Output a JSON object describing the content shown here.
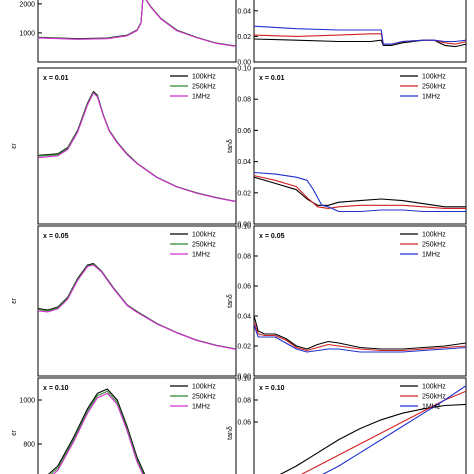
{
  "chart_data": [
    {
      "type": "line",
      "id": "eps-top",
      "ylabel": "",
      "ylim": [
        0,
        2200
      ],
      "yticks": [
        1000,
        2000
      ],
      "xlim": [
        0,
        1
      ],
      "annotation": "",
      "legend": [],
      "series": [
        {
          "name": "",
          "color": "#000000",
          "x": [
            0,
            0.2,
            0.35,
            0.45,
            0.5,
            0.52,
            0.53,
            0.54,
            0.57,
            0.62,
            0.7,
            0.8,
            0.9,
            1
          ],
          "y": [
            850,
            800,
            820,
            920,
            1100,
            1350,
            2200,
            2200,
            1900,
            1500,
            1100,
            850,
            650,
            550
          ]
        },
        {
          "name": "",
          "color": "#2e8b2e",
          "x": [
            0,
            0.2,
            0.35,
            0.45,
            0.5,
            0.52,
            0.53,
            0.54,
            0.57,
            0.62,
            0.7,
            0.8,
            0.9,
            1
          ],
          "y": [
            840,
            790,
            810,
            910,
            1090,
            1340,
            2200,
            2200,
            1890,
            1490,
            1090,
            845,
            645,
            545
          ]
        },
        {
          "name": "",
          "color": "#d22fd2",
          "x": [
            0,
            0.2,
            0.35,
            0.45,
            0.5,
            0.52,
            0.53,
            0.54,
            0.57,
            0.62,
            0.7,
            0.8,
            0.9,
            1
          ],
          "y": [
            830,
            780,
            800,
            900,
            1080,
            1330,
            2200,
            2200,
            1880,
            1480,
            1080,
            840,
            640,
            540
          ]
        }
      ]
    },
    {
      "type": "line",
      "id": "tan-top",
      "ylabel": "",
      "ylim": [
        0,
        0.05
      ],
      "yticks": [
        0.0,
        0.02,
        0.04
      ],
      "xlim": [
        0,
        1
      ],
      "annotation": "",
      "legend": [],
      "series": [
        {
          "name": "",
          "color": "#000000",
          "x": [
            0,
            0.2,
            0.4,
            0.55,
            0.6,
            0.61,
            0.65,
            0.7,
            0.8,
            0.85,
            0.9,
            0.95,
            1
          ],
          "y": [
            0.018,
            0.017,
            0.016,
            0.016,
            0.017,
            0.013,
            0.013,
            0.015,
            0.017,
            0.017,
            0.013,
            0.012,
            0.014
          ]
        },
        {
          "name": "",
          "color": "#d32020",
          "x": [
            0,
            0.2,
            0.4,
            0.55,
            0.6,
            0.61,
            0.65,
            0.7,
            0.8,
            0.85,
            0.9,
            0.95,
            1
          ],
          "y": [
            0.021,
            0.02,
            0.021,
            0.022,
            0.022,
            0.014,
            0.014,
            0.016,
            0.017,
            0.017,
            0.015,
            0.014,
            0.016
          ]
        },
        {
          "name": "",
          "color": "#2030d0",
          "x": [
            0,
            0.2,
            0.4,
            0.55,
            0.6,
            0.61,
            0.65,
            0.7,
            0.8,
            0.85,
            0.9,
            0.95,
            1
          ],
          "y": [
            0.028,
            0.026,
            0.025,
            0.025,
            0.025,
            0.014,
            0.014,
            0.016,
            0.017,
            0.017,
            0.016,
            0.016,
            0.017
          ]
        }
      ]
    },
    {
      "type": "line",
      "id": "eps-001",
      "ylabel": "εr",
      "ylim": [
        0,
        2000
      ],
      "yticks": [],
      "xlim": [
        0,
        1
      ],
      "annotation": "x = 0.01",
      "legend": [
        "100kHz",
        "250kHz",
        "1MHz"
      ],
      "series": [
        {
          "name": "100kHz",
          "color": "#000000",
          "x": [
            0,
            0.1,
            0.15,
            0.2,
            0.25,
            0.28,
            0.3,
            0.33,
            0.36,
            0.4,
            0.45,
            0.5,
            0.6,
            0.7,
            0.8,
            0.9,
            1
          ],
          "y": [
            880,
            900,
            980,
            1200,
            1550,
            1700,
            1650,
            1400,
            1200,
            1050,
            900,
            780,
            600,
            480,
            400,
            340,
            290
          ]
        },
        {
          "name": "250kHz",
          "color": "#2e8b2e",
          "x": [
            0,
            0.1,
            0.15,
            0.2,
            0.25,
            0.28,
            0.3,
            0.33,
            0.36,
            0.4,
            0.45,
            0.5,
            0.6,
            0.7,
            0.8,
            0.9,
            1
          ],
          "y": [
            870,
            890,
            970,
            1190,
            1540,
            1690,
            1640,
            1395,
            1195,
            1045,
            895,
            777,
            598,
            478,
            398,
            338,
            288
          ]
        },
        {
          "name": "1MHz",
          "color": "#d22fd2",
          "x": [
            0,
            0.1,
            0.15,
            0.2,
            0.25,
            0.28,
            0.3,
            0.33,
            0.36,
            0.4,
            0.45,
            0.5,
            0.6,
            0.7,
            0.8,
            0.9,
            1
          ],
          "y": [
            850,
            875,
            955,
            1175,
            1525,
            1680,
            1630,
            1390,
            1190,
            1040,
            890,
            774,
            596,
            476,
            396,
            336,
            286
          ]
        }
      ]
    },
    {
      "type": "line",
      "id": "tan-001",
      "ylabel": "tanδ",
      "ylim": [
        0,
        0.1
      ],
      "yticks": [
        0.0,
        0.02,
        0.04,
        0.06,
        0.08,
        0.1
      ],
      "xlim": [
        0,
        1
      ],
      "annotation": "x = 0.01",
      "legend": [
        "100kHz",
        "250kHz",
        "1MHz"
      ],
      "series": [
        {
          "name": "100kHz",
          "color": "#000000",
          "x": [
            0,
            0.1,
            0.2,
            0.25,
            0.3,
            0.35,
            0.4,
            0.5,
            0.6,
            0.7,
            0.8,
            0.9,
            1
          ],
          "y": [
            0.03,
            0.026,
            0.022,
            0.016,
            0.012,
            0.012,
            0.014,
            0.015,
            0.016,
            0.015,
            0.013,
            0.011,
            0.011
          ]
        },
        {
          "name": "250kHz",
          "color": "#d32020",
          "x": [
            0,
            0.1,
            0.2,
            0.25,
            0.3,
            0.35,
            0.4,
            0.5,
            0.6,
            0.7,
            0.8,
            0.9,
            1
          ],
          "y": [
            0.031,
            0.028,
            0.024,
            0.017,
            0.011,
            0.01,
            0.011,
            0.012,
            0.012,
            0.012,
            0.011,
            0.01,
            0.01
          ]
        },
        {
          "name": "1MHz",
          "color": "#2030d0",
          "x": [
            0,
            0.1,
            0.2,
            0.25,
            0.28,
            0.32,
            0.35,
            0.4,
            0.5,
            0.6,
            0.7,
            0.8,
            0.9,
            1
          ],
          "y": [
            0.033,
            0.032,
            0.03,
            0.028,
            0.022,
            0.012,
            0.011,
            0.008,
            0.008,
            0.009,
            0.009,
            0.008,
            0.008,
            0.008
          ]
        }
      ]
    },
    {
      "type": "line",
      "id": "eps-005",
      "ylabel": "εr",
      "ylim": [
        0,
        2000
      ],
      "yticks": [],
      "xlim": [
        0,
        1
      ],
      "annotation": "x = 0.05",
      "legend": [
        "100kHz",
        "250kHz",
        "1MHz"
      ],
      "series": [
        {
          "name": "100kHz",
          "color": "#000000",
          "x": [
            0,
            0.05,
            0.1,
            0.15,
            0.2,
            0.25,
            0.28,
            0.32,
            0.38,
            0.45,
            0.5,
            0.6,
            0.7,
            0.8,
            0.9,
            1
          ],
          "y": [
            900,
            880,
            920,
            1050,
            1300,
            1480,
            1500,
            1400,
            1180,
            950,
            860,
            700,
            580,
            480,
            410,
            360
          ]
        },
        {
          "name": "250kHz",
          "color": "#2e8b2e",
          "x": [
            0,
            0.05,
            0.1,
            0.15,
            0.2,
            0.25,
            0.28,
            0.32,
            0.38,
            0.45,
            0.5,
            0.6,
            0.7,
            0.8,
            0.9,
            1
          ],
          "y": [
            890,
            870,
            910,
            1040,
            1290,
            1470,
            1490,
            1395,
            1175,
            945,
            855,
            697,
            578,
            478,
            408,
            358
          ]
        },
        {
          "name": "1MHz",
          "color": "#d22fd2",
          "x": [
            0,
            0.05,
            0.1,
            0.15,
            0.2,
            0.25,
            0.28,
            0.32,
            0.38,
            0.45,
            0.5,
            0.6,
            0.7,
            0.8,
            0.9,
            1
          ],
          "y": [
            870,
            855,
            895,
            1025,
            1275,
            1460,
            1480,
            1390,
            1170,
            940,
            850,
            694,
            576,
            476,
            406,
            356
          ]
        }
      ]
    },
    {
      "type": "line",
      "id": "tan-005",
      "ylabel": "tanδ",
      "ylim": [
        0,
        0.1
      ],
      "yticks": [
        0.0,
        0.02,
        0.04,
        0.06,
        0.08,
        0.1
      ],
      "xlim": [
        0,
        1
      ],
      "annotation": "x = 0.05",
      "legend": [
        "100kHz",
        "250kHz",
        "1MHz"
      ],
      "series": [
        {
          "name": "100kHz",
          "color": "#000000",
          "x": [
            0,
            0.02,
            0.05,
            0.1,
            0.15,
            0.2,
            0.25,
            0.3,
            0.35,
            0.4,
            0.5,
            0.6,
            0.7,
            0.8,
            0.9,
            1
          ],
          "y": [
            0.04,
            0.03,
            0.028,
            0.028,
            0.025,
            0.02,
            0.018,
            0.021,
            0.023,
            0.022,
            0.019,
            0.018,
            0.018,
            0.019,
            0.02,
            0.022
          ]
        },
        {
          "name": "250kHz",
          "color": "#d32020",
          "x": [
            0,
            0.02,
            0.05,
            0.1,
            0.15,
            0.2,
            0.25,
            0.3,
            0.35,
            0.4,
            0.5,
            0.6,
            0.7,
            0.8,
            0.9,
            1
          ],
          "y": [
            0.036,
            0.028,
            0.027,
            0.027,
            0.024,
            0.019,
            0.017,
            0.019,
            0.021,
            0.02,
            0.018,
            0.017,
            0.017,
            0.018,
            0.019,
            0.02
          ]
        },
        {
          "name": "1MHz",
          "color": "#2030d0",
          "x": [
            0,
            0.02,
            0.05,
            0.1,
            0.15,
            0.2,
            0.25,
            0.3,
            0.35,
            0.4,
            0.5,
            0.6,
            0.7,
            0.8,
            0.9,
            1
          ],
          "y": [
            0.034,
            0.026,
            0.026,
            0.026,
            0.022,
            0.018,
            0.016,
            0.017,
            0.018,
            0.018,
            0.016,
            0.016,
            0.016,
            0.017,
            0.018,
            0.019
          ]
        }
      ]
    },
    {
      "type": "line",
      "id": "eps-010",
      "ylabel": "εr",
      "ylim": [
        600,
        1100
      ],
      "yticks": [
        600,
        800,
        1000
      ],
      "xlim": [
        0,
        1
      ],
      "annotation": "x = 0.10",
      "legend": [
        "100kHz",
        "250kHz",
        "1MHz"
      ],
      "series": [
        {
          "name": "100kHz",
          "color": "#000000",
          "x": [
            0,
            0.1,
            0.18,
            0.25,
            0.3,
            0.35,
            0.4,
            0.45,
            0.5,
            0.55,
            0.6
          ],
          "y": [
            620,
            700,
            830,
            960,
            1030,
            1050,
            1000,
            880,
            740,
            640,
            600
          ]
        },
        {
          "name": "250kHz",
          "color": "#2e8b2e",
          "x": [
            0,
            0.1,
            0.18,
            0.25,
            0.3,
            0.35,
            0.4,
            0.45,
            0.5,
            0.55,
            0.6
          ],
          "y": [
            610,
            690,
            820,
            950,
            1020,
            1040,
            990,
            870,
            730,
            630,
            590
          ]
        },
        {
          "name": "1MHz",
          "color": "#d22fd2",
          "x": [
            0,
            0.1,
            0.18,
            0.25,
            0.3,
            0.35,
            0.4,
            0.45,
            0.5,
            0.55,
            0.6
          ],
          "y": [
            600,
            680,
            810,
            940,
            1010,
            1030,
            980,
            860,
            720,
            620,
            580
          ]
        }
      ]
    },
    {
      "type": "line",
      "id": "tan-010",
      "ylabel": "tanδ",
      "ylim": [
        0,
        0.1
      ],
      "yticks": [
        0.06,
        0.08,
        0.1
      ],
      "xlim": [
        0,
        1
      ],
      "annotation": "x = 0.10",
      "legend": [
        "100kHz",
        "250kHz",
        "1MHz"
      ],
      "series": [
        {
          "name": "100kHz",
          "color": "#000000",
          "x": [
            0.1,
            0.2,
            0.3,
            0.4,
            0.5,
            0.6,
            0.7,
            0.8,
            0.9,
            1
          ],
          "y": [
            0.01,
            0.02,
            0.032,
            0.044,
            0.054,
            0.062,
            0.068,
            0.072,
            0.075,
            0.076
          ]
        },
        {
          "name": "250kHz",
          "color": "#d32020",
          "x": [
            0.2,
            0.3,
            0.4,
            0.5,
            0.6,
            0.7,
            0.8,
            0.9,
            1
          ],
          "y": [
            0.01,
            0.02,
            0.03,
            0.04,
            0.05,
            0.06,
            0.07,
            0.08,
            0.088
          ]
        },
        {
          "name": "1MHz",
          "color": "#2030d0",
          "x": [
            0.3,
            0.4,
            0.5,
            0.6,
            0.7,
            0.8,
            0.9,
            1
          ],
          "y": [
            0.01,
            0.02,
            0.032,
            0.044,
            0.056,
            0.068,
            0.08,
            0.093
          ]
        }
      ]
    }
  ]
}
